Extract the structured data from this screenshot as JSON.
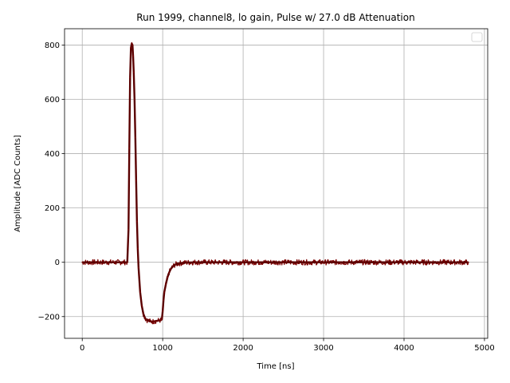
{
  "chart_data": {
    "type": "line",
    "title": "Run 1999, channel8, lo gain, Pulse w/ 27.0 dB Attenuation",
    "xlabel": "Time [ns]",
    "ylabel": "Amplitude [ADC Counts]",
    "xlim": [
      -220,
      5040
    ],
    "ylim": [
      -280,
      860
    ],
    "xticks": [
      0,
      1000,
      2000,
      3000,
      4000,
      5000
    ],
    "yticks": [
      -200,
      0,
      200,
      400,
      600,
      800
    ],
    "xtick_labels": [
      "0",
      "1000",
      "2000",
      "3000",
      "4000",
      "5000"
    ],
    "ytick_labels": [
      "−200",
      "0",
      "200",
      "400",
      "600",
      "800"
    ],
    "grid": true,
    "legend": "top-right, empty",
    "line_color": "#7b0000",
    "series": [
      {
        "x": [
          0,
          100,
          200,
          300,
          400,
          500,
          560,
          575,
          585,
          595,
          605,
          615,
          625,
          632,
          640,
          650,
          660,
          670,
          680,
          690,
          700,
          720,
          740,
          760,
          780,
          800,
          820,
          840,
          860,
          880,
          900,
          920,
          940,
          960,
          980,
          990,
          1000,
          1010,
          1020,
          1040,
          1060,
          1080,
          1100,
          1130,
          1160,
          1200,
          1250,
          1300,
          1400,
          1600,
          2000,
          2500,
          3000,
          3500,
          4000,
          4500,
          4800
        ],
        "y": [
          0,
          0,
          0,
          0,
          0,
          0,
          0,
          120,
          420,
          680,
          790,
          805,
          800,
          760,
          700,
          600,
          460,
          300,
          150,
          50,
          -20,
          -110,
          -160,
          -190,
          -205,
          -212,
          -215,
          -217,
          -218,
          -218,
          -217,
          -216,
          -215,
          -214,
          -213,
          -210,
          -180,
          -140,
          -110,
          -80,
          -55,
          -38,
          -25,
          -14,
          -8,
          -4,
          -2,
          -1,
          0,
          0,
          0,
          0,
          0,
          0,
          0,
          0,
          0
        ]
      }
    ]
  }
}
